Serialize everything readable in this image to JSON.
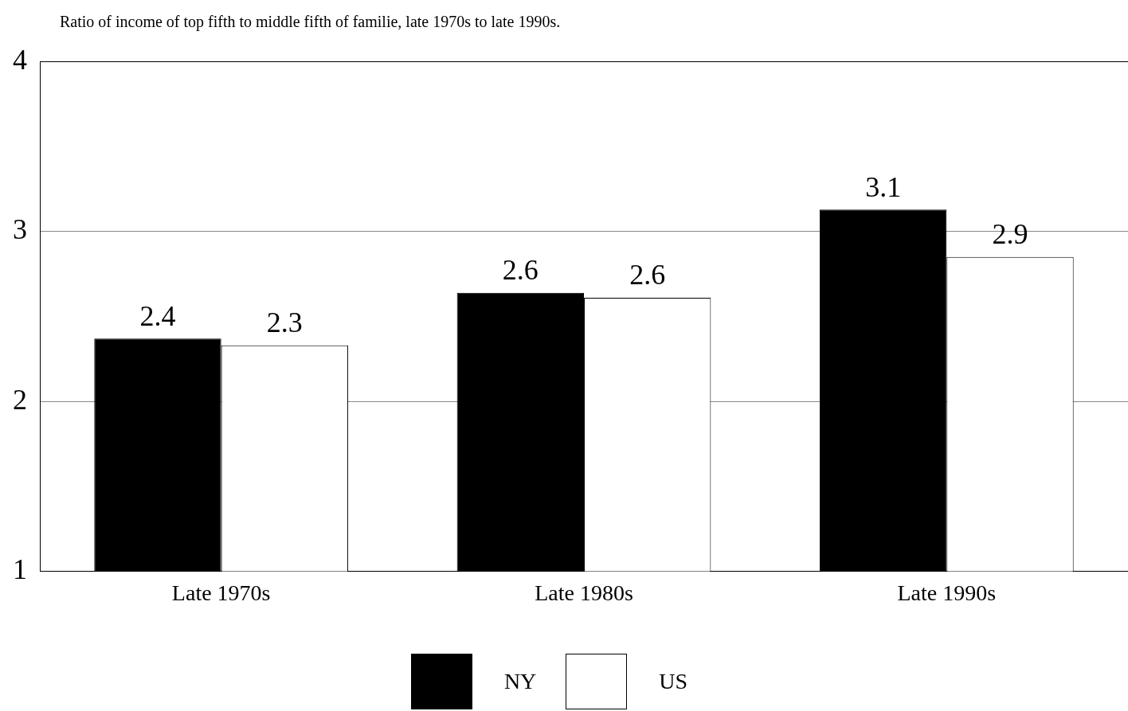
{
  "chart_data": {
    "type": "bar",
    "title": "Ratio of income of top fifth to middle fifth of familie, late 1970s to late 1990s.",
    "categories": [
      "Late 1970s",
      "Late 1980s",
      "Late 1990s"
    ],
    "series": [
      {
        "name": "NY",
        "color": "#000000",
        "values": [
          2.37,
          2.64,
          3.13
        ],
        "value_labels": [
          "2.4",
          "2.6",
          "3.1"
        ]
      },
      {
        "name": "US",
        "color": "#ffffff",
        "values": [
          2.33,
          2.61,
          2.85
        ],
        "value_labels": [
          "2.3",
          "2.6",
          "2.9"
        ]
      }
    ],
    "ylim": [
      1,
      4
    ],
    "yticks": [
      1,
      2,
      3,
      4
    ],
    "grid": "y",
    "legend": "bottom"
  }
}
